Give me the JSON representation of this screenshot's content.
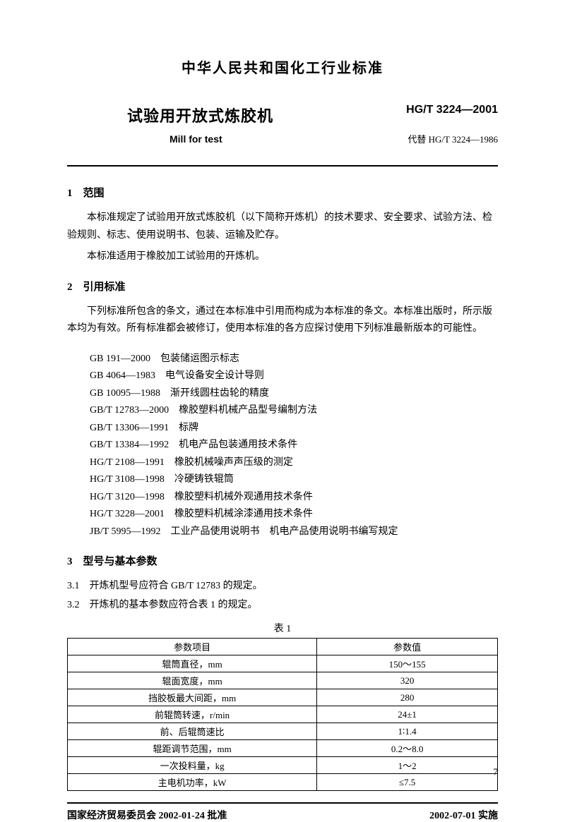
{
  "header": {
    "org_title": "中华人民共和国化工行业标准",
    "main_title": "试验用开放式炼胶机",
    "subtitle_en": "Mill for test",
    "standard_code": "HG/T 3224—2001",
    "replaces": "代替 HG/T 3224—1986"
  },
  "section1": {
    "heading": "1　范围",
    "para1": "本标准规定了试验用开放式炼胶机（以下简称开炼机）的技术要求、安全要求、试验方法、检验规则、标志、使用说明书、包装、运输及贮存。",
    "para2": "本标准适用于橡胶加工试验用的开炼机。"
  },
  "section2": {
    "heading": "2　引用标准",
    "intro": "下列标准所包含的条文，通过在本标准中引用而构成为本标准的条文。本标准出版时，所示版本均为有效。所有标准都会被修订，使用本标准的各方应探讨使用下列标准最新版本的可能性。",
    "refs": [
      "GB 191—2000　包装储运图示标志",
      "GB 4064—1983　电气设备安全设计导则",
      "GB 10095—1988　渐开线圆柱齿轮的精度",
      "GB/T 12783—2000　橡胶塑料机械产品型号编制方法",
      "GB/T 13306—1991　标牌",
      "GB/T 13384—1992　机电产品包装通用技术条件",
      "HG/T 2108—1991　橡胶机械噪声声压级的测定",
      "HG/T 3108—1998　冷硬铸铁辊筒",
      "HG/T 3120—1998　橡胶塑料机械外观通用技术条件",
      "HG/T 3228—2001　橡胶塑料机械涂漆通用技术条件",
      "JB/T 5995—1992　工业产品使用说明书　机电产品使用说明书编写规定"
    ]
  },
  "section3": {
    "heading": "3　型号与基本参数",
    "item31": "3.1　开炼机型号应符合 GB/T 12783 的规定。",
    "item32": "3.2　开炼机的基本参数应符合表 1 的规定。",
    "table_caption": "表 1",
    "table": {
      "header": [
        "参数项目",
        "参数值"
      ],
      "rows": [
        [
          "辊筒直径，mm",
          "150～155"
        ],
        [
          "辊面宽度，mm",
          "320"
        ],
        [
          "挡胶板最大间距，mm",
          "280"
        ],
        [
          "前辊筒转速，r/min",
          "24±1"
        ],
        [
          "前、后辊筒速比",
          "1∶1.4"
        ],
        [
          "辊距调节范围，mm",
          "0.2～8.0"
        ],
        [
          "一次投料量，kg",
          "1～2"
        ],
        [
          "主电机功率，kW",
          "≤7.5"
        ]
      ]
    }
  },
  "footer": {
    "left": "国家经济贸易委员会 2002-01-24 批准",
    "right": "2002-07-01 实施"
  },
  "page_number": "7",
  "colors": {
    "text": "#000000",
    "background": "#ffffff",
    "border": "#000000"
  }
}
